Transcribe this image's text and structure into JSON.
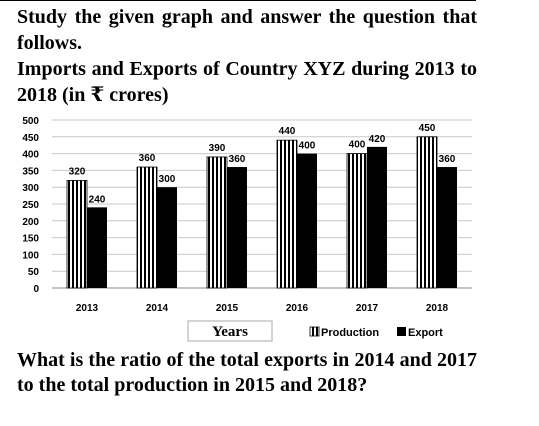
{
  "intro_text": "Study the given graph and answer the question that follows.",
  "question_text": "What is the ratio of the total exports in 2014 and 2017 to the total production in 2015 and 2018?",
  "colors": {
    "production_fill": "#ffffff",
    "production_stripe": "#000000",
    "export_fill": "#000000",
    "grid": "#c8c8c8",
    "axis": "#888888"
  },
  "chart_data": {
    "type": "bar",
    "title": "Imports and Exports of Country XYZ during 2013 to 2018 (in ₹ crores)",
    "xlabel": "Years",
    "ylabel": "",
    "categories": [
      "2013",
      "2014",
      "2015",
      "2016",
      "2017",
      "2018"
    ],
    "series": [
      {
        "name": "Production",
        "values": [
          320,
          360,
          390,
          440,
          400,
          450
        ]
      },
      {
        "name": "Export",
        "values": [
          240,
          300,
          360,
          400,
          420,
          360
        ]
      }
    ],
    "ylim": [
      0,
      500
    ],
    "yticks": [
      0,
      50,
      100,
      150,
      200,
      250,
      300,
      350,
      400,
      450,
      500
    ],
    "grid": true,
    "legend": "bottom-right"
  }
}
